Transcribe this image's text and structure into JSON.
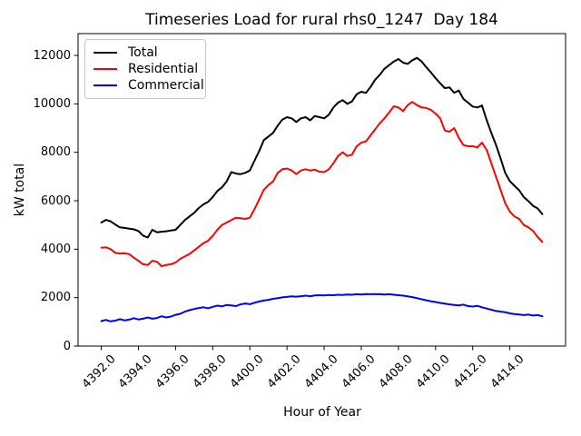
{
  "chart_data": {
    "type": "line",
    "title": "Timeseries Load for rural rhs0_1247  Day 184",
    "xlabel": "Hour of Year",
    "ylabel": "kW total",
    "grid": false,
    "legend_position": "upper left",
    "xlim": [
      4390.75,
      4417.0
    ],
    "ylim": [
      0,
      12900
    ],
    "x_ticks": {
      "values": [
        4392,
        4394,
        4396,
        4398,
        4400,
        4402,
        4404,
        4406,
        4408,
        4410,
        4412,
        4414
      ],
      "labels": [
        "4392.0",
        "4394.0",
        "4396.0",
        "4398.0",
        "4400.0",
        "4402.0",
        "4404.0",
        "4406.0",
        "4408.0",
        "4410.0",
        "4412.0",
        "4414.0"
      ]
    },
    "y_ticks": {
      "values": [
        0,
        2000,
        4000,
        6000,
        8000,
        10000,
        12000
      ],
      "labels": [
        "0",
        "2000",
        "4000",
        "6000",
        "8000",
        "10000",
        "12000"
      ]
    },
    "x": [
      4392.0,
      4392.25,
      4392.5,
      4392.75,
      4393.0,
      4393.25,
      4393.5,
      4393.75,
      4394.0,
      4394.25,
      4394.5,
      4394.75,
      4395.0,
      4395.25,
      4395.5,
      4395.75,
      4396.0,
      4396.25,
      4396.5,
      4396.75,
      4397.0,
      4397.25,
      4397.5,
      4397.75,
      4398.0,
      4398.25,
      4398.5,
      4398.75,
      4399.0,
      4399.25,
      4399.5,
      4399.75,
      4400.0,
      4400.25,
      4400.5,
      4400.75,
      4401.0,
      4401.25,
      4401.5,
      4401.75,
      4402.0,
      4402.25,
      4402.5,
      4402.75,
      4403.0,
      4403.25,
      4403.5,
      4403.75,
      4404.0,
      4404.25,
      4404.5,
      4404.75,
      4405.0,
      4405.25,
      4405.5,
      4405.75,
      4406.0,
      4406.25,
      4406.5,
      4406.75,
      4407.0,
      4407.25,
      4407.5,
      4407.75,
      4408.0,
      4408.25,
      4408.5,
      4408.75,
      4409.0,
      4409.25,
      4409.5,
      4409.75,
      4410.0,
      4410.25,
      4410.5,
      4410.75,
      4411.0,
      4411.25,
      4411.5,
      4411.75,
      4412.0,
      4412.25,
      4412.5,
      4412.75,
      4413.0,
      4413.25,
      4413.5,
      4413.75,
      4414.0,
      4414.25,
      4414.5,
      4414.75,
      4415.0,
      4415.25,
      4415.5,
      4415.75
    ],
    "series": [
      {
        "name": "Total",
        "color": "#000000",
        "values": [
          5100,
          5210,
          5150,
          5020,
          4900,
          4880,
          4850,
          4820,
          4750,
          4560,
          4480,
          4800,
          4700,
          4720,
          4740,
          4770,
          4800,
          5000,
          5200,
          5350,
          5500,
          5700,
          5850,
          5950,
          6150,
          6400,
          6550,
          6800,
          7180,
          7120,
          7100,
          7150,
          7250,
          7650,
          8050,
          8500,
          8650,
          8800,
          9100,
          9350,
          9450,
          9400,
          9250,
          9400,
          9450,
          9320,
          9500,
          9450,
          9400,
          9550,
          9850,
          10050,
          10150,
          10000,
          10100,
          10400,
          10500,
          10450,
          10700,
          11000,
          11200,
          11450,
          11600,
          11750,
          11850,
          11700,
          11650,
          11800,
          11900,
          11750,
          11510,
          11300,
          11060,
          10850,
          10650,
          10680,
          10460,
          10550,
          10200,
          10050,
          9890,
          9850,
          9930,
          9330,
          8800,
          8310,
          7750,
          7150,
          6810,
          6620,
          6430,
          6150,
          5980,
          5790,
          5680,
          5450
        ]
      },
      {
        "name": "Residential",
        "color": "#ff0000",
        "values": [
          4060,
          4080,
          4000,
          3850,
          3820,
          3830,
          3800,
          3650,
          3520,
          3380,
          3350,
          3520,
          3480,
          3300,
          3350,
          3380,
          3450,
          3600,
          3700,
          3800,
          3950,
          4100,
          4250,
          4350,
          4550,
          4800,
          5000,
          5100,
          5200,
          5300,
          5280,
          5250,
          5300,
          5650,
          6050,
          6450,
          6650,
          6800,
          7150,
          7300,
          7330,
          7250,
          7100,
          7250,
          7300,
          7250,
          7280,
          7200,
          7180,
          7300,
          7550,
          7850,
          8000,
          7850,
          7900,
          8250,
          8400,
          8450,
          8700,
          8950,
          9200,
          9400,
          9650,
          9900,
          9850,
          9700,
          9950,
          10080,
          9950,
          9850,
          9830,
          9750,
          9600,
          9400,
          8900,
          8850,
          9000,
          8600,
          8300,
          8250,
          8250,
          8200,
          8400,
          8100,
          7550,
          7000,
          6450,
          5900,
          5550,
          5350,
          5250,
          5000,
          4900,
          4750,
          4500,
          4300
        ]
      },
      {
        "name": "Commercial",
        "color": "#0000ff",
        "values": [
          1030,
          1080,
          1020,
          1050,
          1110,
          1060,
          1090,
          1150,
          1100,
          1130,
          1180,
          1130,
          1160,
          1230,
          1180,
          1220,
          1290,
          1330,
          1420,
          1480,
          1530,
          1570,
          1600,
          1560,
          1620,
          1670,
          1640,
          1700,
          1680,
          1650,
          1720,
          1760,
          1730,
          1790,
          1840,
          1880,
          1910,
          1950,
          1980,
          2010,
          2030,
          2050,
          2040,
          2060,
          2080,
          2060,
          2090,
          2100,
          2090,
          2110,
          2100,
          2120,
          2110,
          2130,
          2120,
          2140,
          2130,
          2150,
          2140,
          2150,
          2140,
          2130,
          2140,
          2120,
          2100,
          2080,
          2050,
          2020,
          1980,
          1930,
          1890,
          1850,
          1820,
          1780,
          1750,
          1720,
          1700,
          1680,
          1710,
          1650,
          1630,
          1660,
          1600,
          1550,
          1500,
          1450,
          1420,
          1400,
          1350,
          1320,
          1300,
          1280,
          1300,
          1260,
          1280,
          1230
        ]
      }
    ]
  }
}
